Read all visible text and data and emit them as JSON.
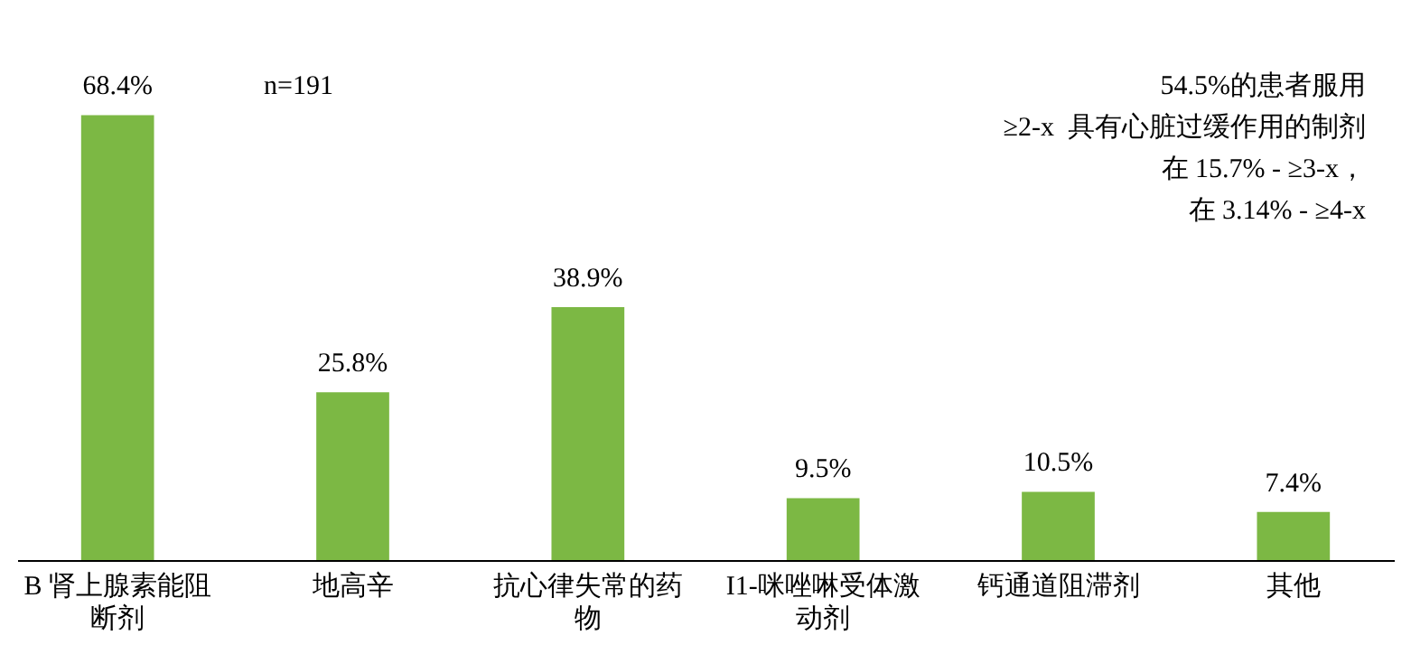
{
  "chart_data": {
    "type": "bar",
    "categories": [
      "B 肾上腺素能阻断剂",
      "地高辛",
      "抗心律失常的药物",
      "I1-咪唑啉受体激动剂",
      "钙通道阻滞剂",
      "其他"
    ],
    "values": [
      68.4,
      25.8,
      38.9,
      9.5,
      10.5,
      7.4
    ],
    "value_labels": [
      "68.4%",
      "25.8%",
      "38.9%",
      "9.5%",
      "10.5%",
      "7.4%"
    ],
    "color": "#7cb844",
    "grid": false,
    "legend": false,
    "annotations": [
      "n=191",
      "54.5%的患者服用",
      "≥2-x  具有心脏过缓作用的制剂",
      "在 15.7% - ≥3-x，",
      "在 3.14% - ≥4-x"
    ]
  }
}
